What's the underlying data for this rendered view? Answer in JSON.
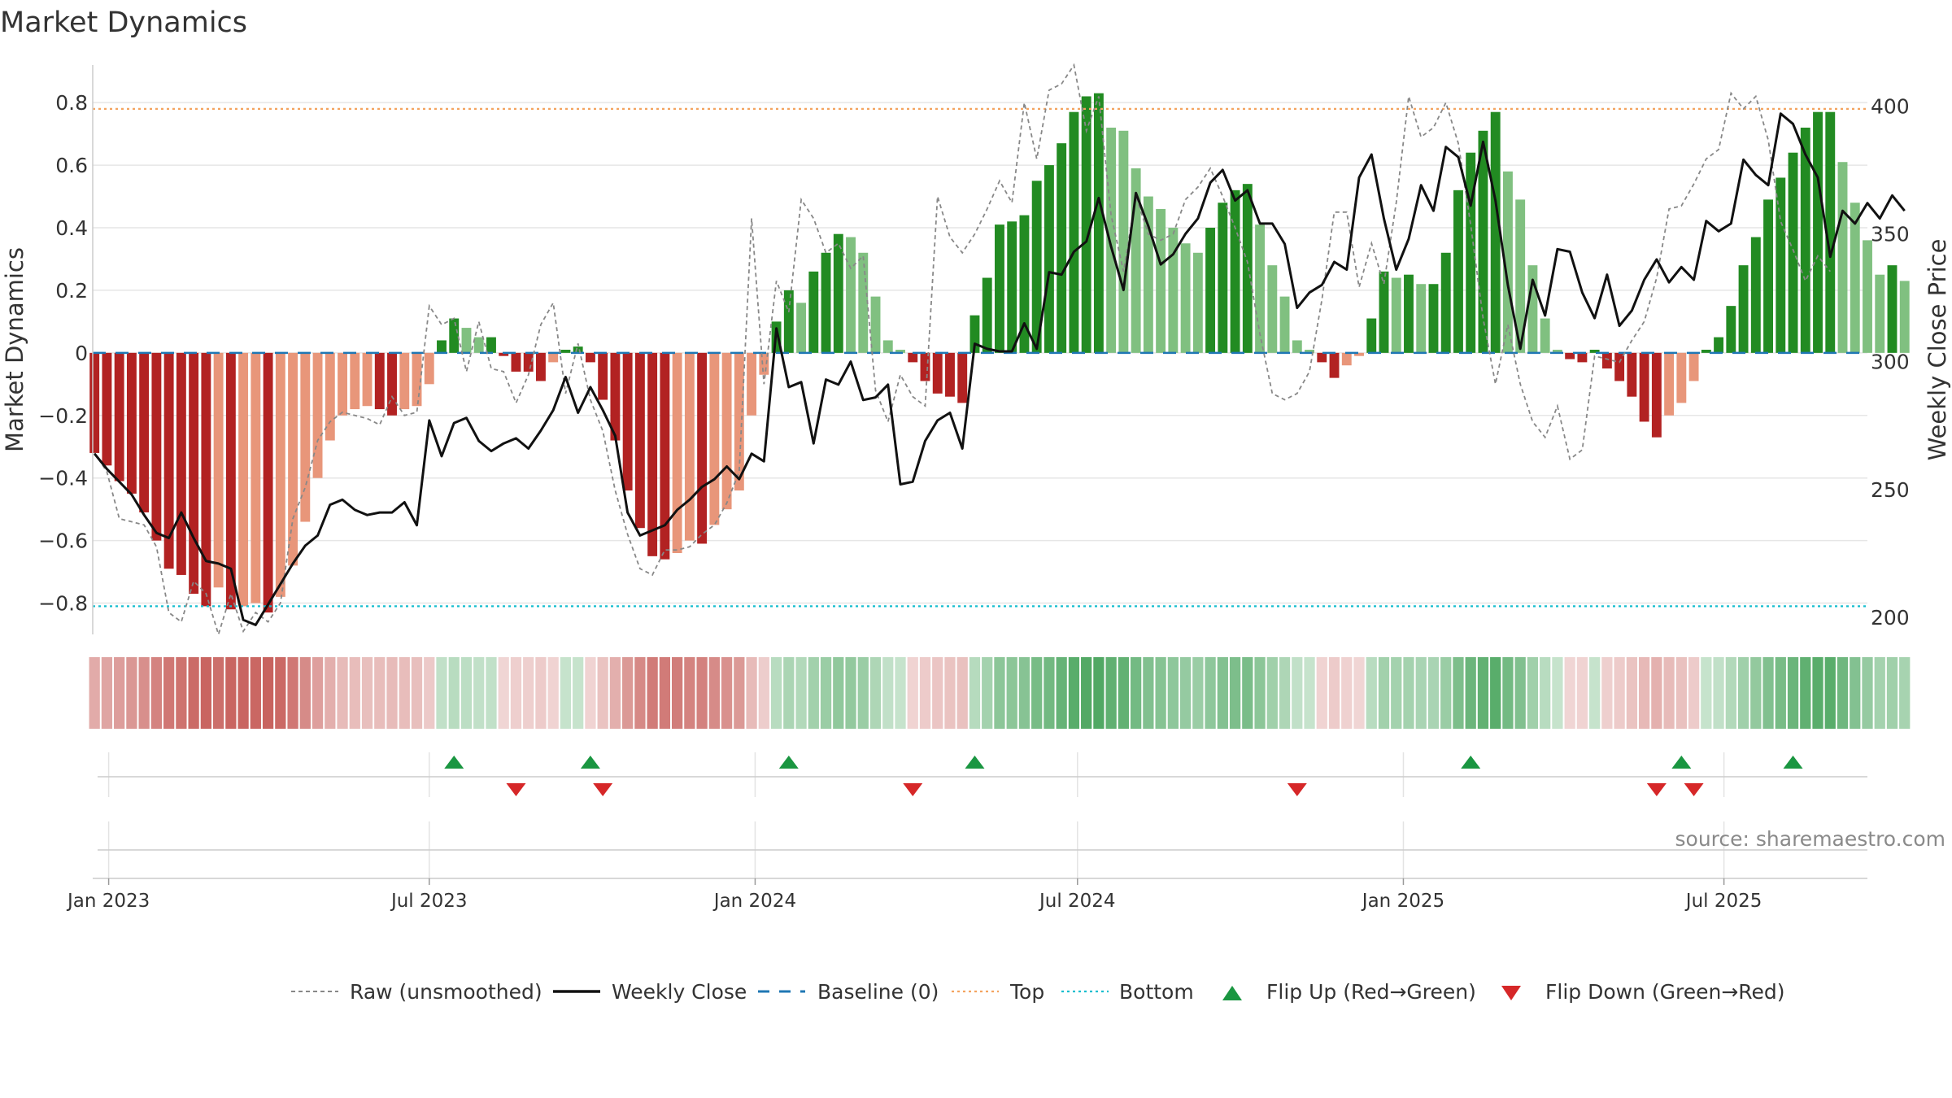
{
  "title": "Market Dynamics",
  "source": "source: sharemaestro.com",
  "colors": {
    "dark_green": "#228b22",
    "light_green": "#80c080",
    "dark_red": "#b22222",
    "light_red": "#e8967a",
    "close_line": "#111111",
    "raw_line": "#888888",
    "baseline": "#1f77b4",
    "top": "#f4a460",
    "bottom": "#17becf",
    "flip_up": "#1a9641",
    "flip_down": "#d62728"
  },
  "legend": {
    "raw": "Raw (unsmoothed)",
    "close": "Weekly Close",
    "baseline": "Baseline (0)",
    "top": "Top",
    "bottom": "Bottom",
    "flip_up": "Flip Up (Red→Green)",
    "flip_down": "Flip Down (Green→Red)"
  },
  "chart_data": {
    "type": "bar",
    "ylabel": "Market Dynamics",
    "y2label": "Weekly Close Price",
    "ylim": [
      -0.9,
      0.92
    ],
    "y2lim": [
      193.3,
      416
    ],
    "yticks": [
      0.8,
      0.6,
      0.4,
      0.2,
      0,
      -0.2,
      -0.4,
      -0.6,
      -0.8
    ],
    "ytick_labels": [
      "0.8",
      "0.6",
      "0.4",
      "0.2",
      "0",
      "−0.2",
      "−0.4",
      "−0.6",
      "−0.8"
    ],
    "y2ticks": [
      400,
      350,
      300,
      250,
      200
    ],
    "x_start": "2022-12-23",
    "x_end": "2025-09-20",
    "xticks": [
      "2023-01-01",
      "2023-07-01",
      "2024-01-01",
      "2024-07-01",
      "2025-01-01",
      "2025-07-01"
    ],
    "xtick_labels": [
      "Jan 2023",
      "Jul 2023",
      "Jan 2024",
      "Jul 2024",
      "Jan 2025",
      "Jul 2025"
    ],
    "top_level": 0.78,
    "bottom_level": -0.81,
    "baseline": 0,
    "weeks_start": "2022-12-24",
    "dynamics": [
      -0.32,
      -0.36,
      -0.41,
      -0.45,
      -0.51,
      -0.6,
      -0.69,
      -0.71,
      -0.77,
      -0.81,
      -0.75,
      -0.82,
      -0.81,
      -0.8,
      -0.83,
      -0.78,
      -0.68,
      -0.54,
      -0.4,
      -0.28,
      -0.2,
      -0.18,
      -0.17,
      -0.18,
      -0.2,
      -0.18,
      -0.17,
      -0.1,
      0.04,
      0.11,
      0.08,
      0.05,
      0.05,
      -0.01,
      -0.06,
      -0.06,
      -0.09,
      -0.03,
      0.01,
      0.02,
      -0.03,
      -0.15,
      -0.28,
      -0.44,
      -0.56,
      -0.65,
      -0.66,
      -0.64,
      -0.6,
      -0.61,
      -0.55,
      -0.5,
      -0.44,
      -0.2,
      -0.07,
      0.1,
      0.2,
      0.16,
      0.26,
      0.32,
      0.38,
      0.37,
      0.32,
      0.18,
      0.04,
      0.01,
      -0.03,
      -0.09,
      -0.13,
      -0.14,
      -0.16,
      0.12,
      0.24,
      0.41,
      0.42,
      0.44,
      0.55,
      0.6,
      0.67,
      0.77,
      0.82,
      0.83,
      0.72,
      0.71,
      0.59,
      0.5,
      0.46,
      0.4,
      0.35,
      0.32,
      0.4,
      0.48,
      0.52,
      0.54,
      0.41,
      0.28,
      0.18,
      0.04,
      0.01,
      -0.03,
      -0.08,
      -0.04,
      -0.01,
      0.11,
      0.26,
      0.24,
      0.25,
      0.22,
      0.22,
      0.32,
      0.52,
      0.64,
      0.71,
      0.77,
      0.58,
      0.49,
      0.28,
      0.11,
      0.01,
      -0.02,
      -0.03,
      0.01,
      -0.05,
      -0.09,
      -0.14,
      -0.22,
      -0.27,
      -0.2,
      -0.16,
      -0.09,
      0.01,
      0.05,
      0.15,
      0.28,
      0.37,
      0.49,
      0.56,
      0.64,
      0.72,
      0.77,
      0.77,
      0.61,
      0.48,
      0.36,
      0.25,
      0.28,
      0.23
    ],
    "close": [
      264,
      258,
      253,
      248,
      240,
      233,
      231,
      241,
      231,
      222,
      221,
      219,
      199,
      197,
      205,
      213,
      221,
      228,
      232,
      244,
      246,
      242,
      240,
      241,
      241,
      245,
      236,
      277,
      263,
      276,
      278,
      269,
      265,
      268,
      270,
      266,
      273,
      281,
      294,
      280,
      290,
      281,
      271,
      241,
      232,
      234,
      236,
      242,
      246,
      251,
      254,
      259,
      254,
      264,
      261,
      313,
      290,
      292,
      268,
      293,
      291,
      300,
      285,
      286,
      291,
      252,
      253,
      269,
      277,
      280,
      266,
      307,
      305,
      304,
      304,
      315,
      305,
      335,
      334,
      343,
      347,
      364,
      345,
      328,
      366,
      353,
      338,
      342,
      350,
      356,
      370,
      375,
      363,
      367,
      354,
      354,
      346,
      321,
      327,
      330,
      339,
      336,
      372,
      381,
      356,
      336,
      348,
      369,
      359,
      384,
      380,
      361,
      386,
      363,
      330,
      305,
      332,
      318,
      344,
      343,
      327,
      317,
      334,
      314,
      320,
      332,
      340,
      331,
      337,
      332,
      355,
      351,
      354,
      379,
      373,
      369,
      397,
      393,
      381,
      372,
      341,
      359,
      354,
      362,
      356,
      365,
      359
    ]
  },
  "raw_points": [
    [
      0,
      -0.32
    ],
    [
      1,
      -0.38
    ],
    [
      2,
      -0.53
    ],
    [
      4,
      -0.55
    ],
    [
      5,
      -0.62
    ],
    [
      6,
      -0.83
    ],
    [
      7,
      -0.86
    ],
    [
      8,
      -0.73
    ],
    [
      9,
      -0.77
    ],
    [
      10,
      -0.9
    ],
    [
      11,
      -0.77
    ],
    [
      12,
      -0.89
    ],
    [
      13,
      -0.83
    ],
    [
      14,
      -0.86
    ],
    [
      15,
      -0.8
    ],
    [
      16,
      -0.53
    ],
    [
      17,
      -0.43
    ],
    [
      18,
      -0.28
    ],
    [
      19,
      -0.22
    ],
    [
      20,
      -0.19
    ],
    [
      21,
      -0.2
    ],
    [
      22,
      -0.21
    ],
    [
      23,
      -0.23
    ],
    [
      24,
      -0.14
    ],
    [
      25,
      -0.2
    ],
    [
      26,
      -0.19
    ],
    [
      27,
      0.15
    ],
    [
      28,
      0.09
    ],
    [
      29,
      0.11
    ],
    [
      30,
      -0.06
    ],
    [
      31,
      0.1
    ],
    [
      32,
      -0.05
    ],
    [
      33,
      -0.06
    ],
    [
      34,
      -0.16
    ],
    [
      35,
      -0.07
    ],
    [
      36,
      0.09
    ],
    [
      37,
      0.16
    ],
    [
      38,
      -0.13
    ],
    [
      39,
      0.03
    ],
    [
      40,
      -0.15
    ],
    [
      41,
      -0.25
    ],
    [
      42,
      -0.44
    ],
    [
      43,
      -0.58
    ],
    [
      44,
      -0.69
    ],
    [
      45,
      -0.71
    ],
    [
      46,
      -0.63
    ],
    [
      47,
      -0.63
    ],
    [
      48,
      -0.62
    ],
    [
      49,
      -0.58
    ],
    [
      50,
      -0.55
    ],
    [
      51,
      -0.48
    ],
    [
      52,
      -0.38
    ],
    [
      53,
      0.43
    ],
    [
      54,
      -0.1
    ],
    [
      55,
      0.23
    ],
    [
      56,
      0.13
    ],
    [
      57,
      0.49
    ],
    [
      58,
      0.43
    ],
    [
      59,
      0.32
    ],
    [
      60,
      0.35
    ],
    [
      61,
      0.27
    ],
    [
      62,
      0.31
    ],
    [
      63,
      -0.12
    ],
    [
      64,
      -0.22
    ],
    [
      65,
      -0.07
    ],
    [
      66,
      -0.14
    ],
    [
      67,
      -0.17
    ],
    [
      68,
      0.5
    ],
    [
      69,
      0.37
    ],
    [
      70,
      0.32
    ],
    [
      71,
      0.38
    ],
    [
      72,
      0.46
    ],
    [
      73,
      0.55
    ],
    [
      74,
      0.48
    ],
    [
      75,
      0.8
    ],
    [
      76,
      0.62
    ],
    [
      77,
      0.84
    ],
    [
      78,
      0.86
    ],
    [
      79,
      0.92
    ],
    [
      80,
      0.71
    ],
    [
      81,
      0.82
    ],
    [
      82,
      0.44
    ],
    [
      83,
      0.26
    ],
    [
      84,
      0.5
    ],
    [
      85,
      0.38
    ],
    [
      86,
      0.36
    ],
    [
      87,
      0.38
    ],
    [
      88,
      0.49
    ],
    [
      89,
      0.53
    ],
    [
      90,
      0.59
    ],
    [
      91,
      0.5
    ],
    [
      92,
      0.4
    ],
    [
      93,
      0.29
    ],
    [
      94,
      0.06
    ],
    [
      95,
      -0.13
    ],
    [
      96,
      -0.15
    ],
    [
      97,
      -0.13
    ],
    [
      98,
      -0.06
    ],
    [
      99,
      0.17
    ],
    [
      100,
      0.45
    ],
    [
      101,
      0.45
    ],
    [
      102,
      0.21
    ],
    [
      103,
      0.35
    ],
    [
      104,
      0.22
    ],
    [
      105,
      0.48
    ],
    [
      106,
      0.82
    ],
    [
      107,
      0.69
    ],
    [
      108,
      0.72
    ],
    [
      109,
      0.8
    ],
    [
      110,
      0.67
    ],
    [
      111,
      0.41
    ],
    [
      112,
      0.11
    ],
    [
      113,
      -0.1
    ],
    [
      114,
      0.09
    ],
    [
      115,
      -0.1
    ],
    [
      116,
      -0.22
    ],
    [
      117,
      -0.27
    ],
    [
      118,
      -0.17
    ],
    [
      119,
      -0.34
    ],
    [
      120,
      -0.31
    ],
    [
      121,
      -0.01
    ],
    [
      122,
      -0.02
    ],
    [
      123,
      -0.03
    ],
    [
      124,
      0.04
    ],
    [
      125,
      0.1
    ],
    [
      126,
      0.24
    ],
    [
      127,
      0.46
    ],
    [
      128,
      0.47
    ],
    [
      129,
      0.54
    ],
    [
      130,
      0.62
    ],
    [
      131,
      0.65
    ],
    [
      132,
      0.83
    ],
    [
      133,
      0.78
    ],
    [
      134,
      0.82
    ],
    [
      135,
      0.68
    ],
    [
      136,
      0.42
    ],
    [
      137,
      0.33
    ],
    [
      138,
      0.23
    ],
    [
      139,
      0.31
    ],
    [
      140,
      0.26
    ]
  ],
  "flips_up": [
    29,
    40,
    56,
    71,
    111,
    128,
    137
  ],
  "flips_down": [
    34,
    41,
    66,
    97,
    126,
    129
  ]
}
